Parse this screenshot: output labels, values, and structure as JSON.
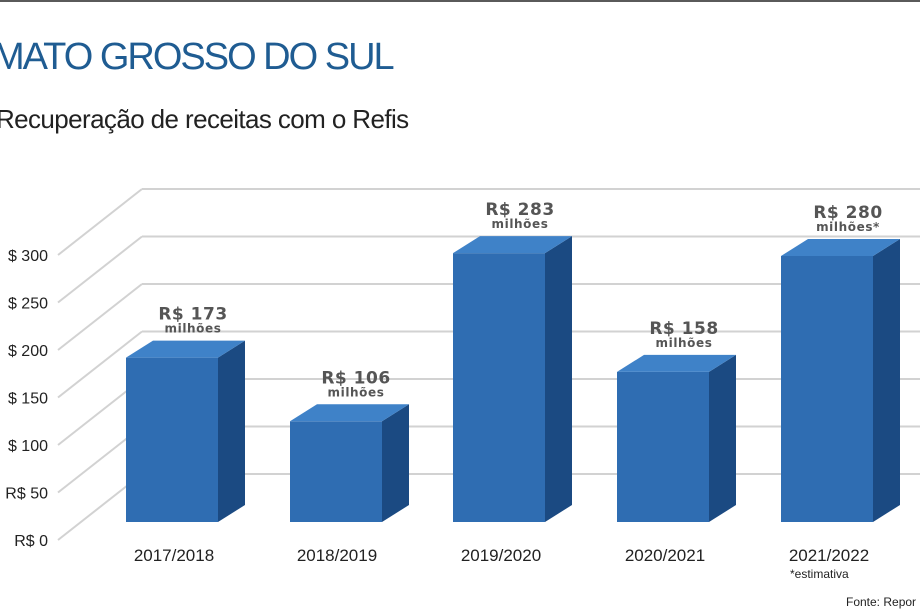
{
  "header": {
    "title": "MATO GROSSO DO SUL",
    "subtitle": "Recuperação de receitas com o Refis"
  },
  "source": "Fonte: Repor",
  "colors": {
    "title": "#1f5c92",
    "bar_front": "#2f6db2",
    "bar_side": "#1b4a82",
    "bar_top": "#3f82c8"
  },
  "chart_data": {
    "type": "bar",
    "title": "",
    "xlabel": "",
    "ylabel": "",
    "ylim": [
      0,
      300
    ],
    "yticks": [
      {
        "value": 0,
        "label": "R$ 0"
      },
      {
        "value": 50,
        "label": "R$ 50"
      },
      {
        "value": 100,
        "label": "$ 100"
      },
      {
        "value": 150,
        "label": "$ 150"
      },
      {
        "value": 200,
        "label": "$ 200"
      },
      {
        "value": 250,
        "label": "$ 250"
      },
      {
        "value": 300,
        "label": "$ 300"
      }
    ],
    "categories": [
      "2017/2018",
      "2018/2019",
      "2019/2020",
      "2020/2021",
      "2021/2022"
    ],
    "values": [
      173,
      106,
      283,
      158,
      280
    ],
    "value_labels": [
      "R$ 173",
      "R$ 106",
      "R$ 283",
      "R$ 158",
      "R$ 280"
    ],
    "unit_labels": [
      "milhões",
      "milhões",
      "milhões",
      "milhões",
      "milhões*"
    ],
    "note": "*estimativa",
    "grid": true,
    "style": "3d"
  }
}
